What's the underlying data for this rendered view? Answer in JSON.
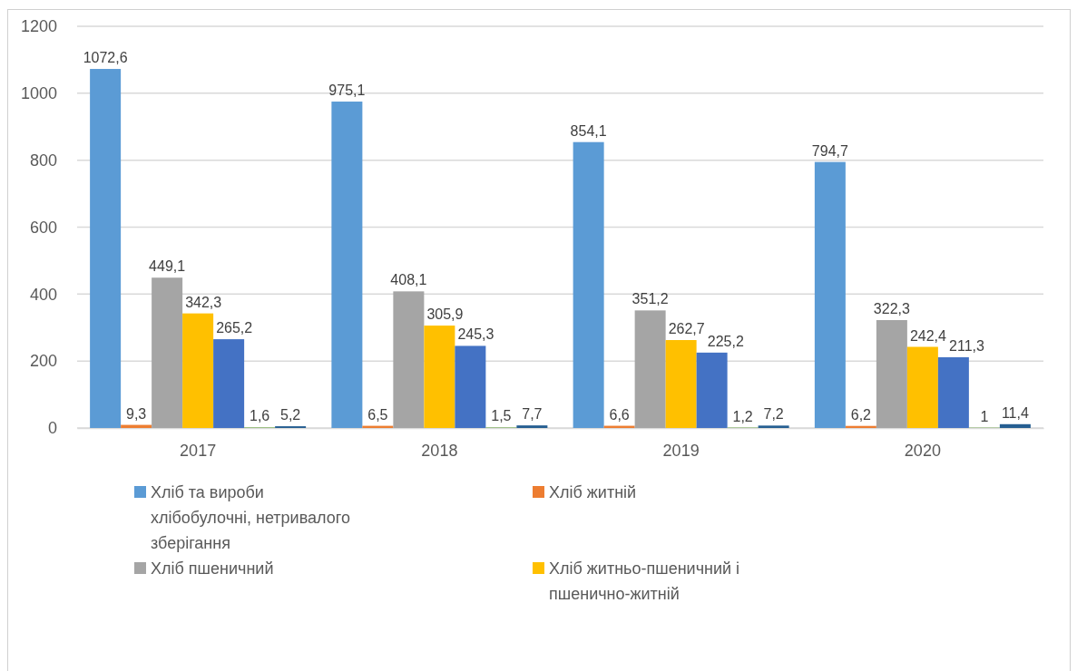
{
  "chart_data": {
    "type": "bar",
    "categories": [
      "2017",
      "2018",
      "2019",
      "2020"
    ],
    "series": [
      {
        "name": "Хліб та вироби хлібобулочні, нетривалого зберігання",
        "color": "#5b9bd5",
        "values": [
          1072.6,
          975.1,
          854.1,
          794.7
        ],
        "value_labels": [
          "1072,6",
          "975,1",
          "854,1",
          "794,7"
        ]
      },
      {
        "name": "Хліб житній",
        "color": "#ed7d31",
        "values": [
          9.3,
          6.5,
          6.6,
          6.2
        ],
        "value_labels": [
          "9,3",
          "6,5",
          "6,6",
          "6,2"
        ]
      },
      {
        "name": "Хліб пшеничний",
        "color": "#a5a5a5",
        "values": [
          449.1,
          408.1,
          351.2,
          322.3
        ],
        "value_labels": [
          "449,1",
          "408,1",
          "351,2",
          "322,3"
        ]
      },
      {
        "name": "Хліб житньо-пшеничний і пшенично-житній",
        "color": "#ffc000",
        "values": [
          342.3,
          305.9,
          262.7,
          242.4
        ],
        "value_labels": [
          "342,3",
          "305,9",
          "262,7",
          "242,4"
        ]
      },
      {
        "color": "#4472c4",
        "values": [
          265.2,
          245.3,
          225.2,
          211.3
        ],
        "value_labels": [
          "265,2",
          "245,3",
          "225,2",
          "211,3"
        ]
      },
      {
        "color": "#70ad47",
        "values": [
          1.6,
          1.5,
          1.2,
          1
        ],
        "value_labels": [
          "1,6",
          "1,5",
          "1,2",
          "1"
        ]
      },
      {
        "color": "#255e91",
        "values": [
          5.2,
          7.7,
          7.2,
          11.4
        ],
        "value_labels": [
          "5,2",
          "7,7",
          "7,2",
          "11,4"
        ]
      }
    ],
    "ylim": [
      0,
      1200
    ],
    "yticks": [
      0,
      200,
      400,
      600,
      800,
      1000,
      1200
    ],
    "grid": "y",
    "legend": "bottom"
  }
}
